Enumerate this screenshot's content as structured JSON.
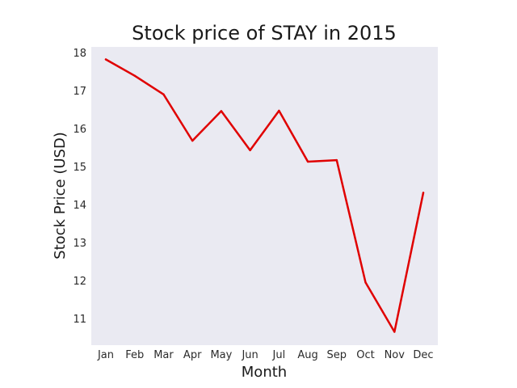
{
  "chart_data": {
    "type": "line",
    "title": "Stock price of STAY in 2015",
    "xlabel": "Month",
    "ylabel": "Stock Price (USD)",
    "categories": [
      "Jan",
      "Feb",
      "Mar",
      "Apr",
      "May",
      "Jun",
      "Jul",
      "Aug",
      "Sep",
      "Oct",
      "Nov",
      "Dec"
    ],
    "series": [
      {
        "values": [
          17.82,
          17.39,
          16.9,
          15.68,
          16.46,
          15.43,
          16.47,
          15.13,
          15.17,
          11.95,
          10.65,
          14.31
        ],
        "color": "#e00000"
      }
    ],
    "yticks": [
      11,
      12,
      13,
      14,
      15,
      16,
      17,
      18
    ],
    "ylim": [
      10.3,
      18.15
    ],
    "grid": false,
    "background": "#eaeaf2"
  }
}
